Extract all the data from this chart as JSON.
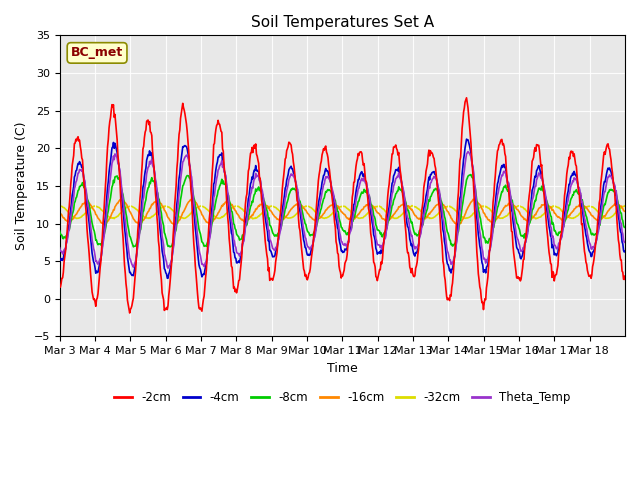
{
  "title": "Soil Temperatures Set A",
  "xlabel": "Time",
  "ylabel": "Soil Temperature (C)",
  "ylim": [
    -5,
    35
  ],
  "annotation_text": "BC_met",
  "legend_labels": [
    "-2cm",
    "-4cm",
    "-8cm",
    "-16cm",
    "-32cm",
    "Theta_Temp"
  ],
  "line_colors": [
    "#ff0000",
    "#0000cc",
    "#00cc00",
    "#ff8800",
    "#dddd00",
    "#9933cc"
  ],
  "bg_color": "#e8e8e8",
  "tick_dates": [
    "Mar 3",
    "Mar 4",
    "Mar 5",
    "Mar 6",
    "Mar 7",
    "Mar 8",
    "Mar 9",
    "Mar 10",
    "Mar 11",
    "Mar 12",
    "Mar 13",
    "Mar 14",
    "Mar 15",
    "Mar 16",
    "Mar 17",
    "Mar 18"
  ],
  "num_days": 16,
  "points_per_day": 48
}
